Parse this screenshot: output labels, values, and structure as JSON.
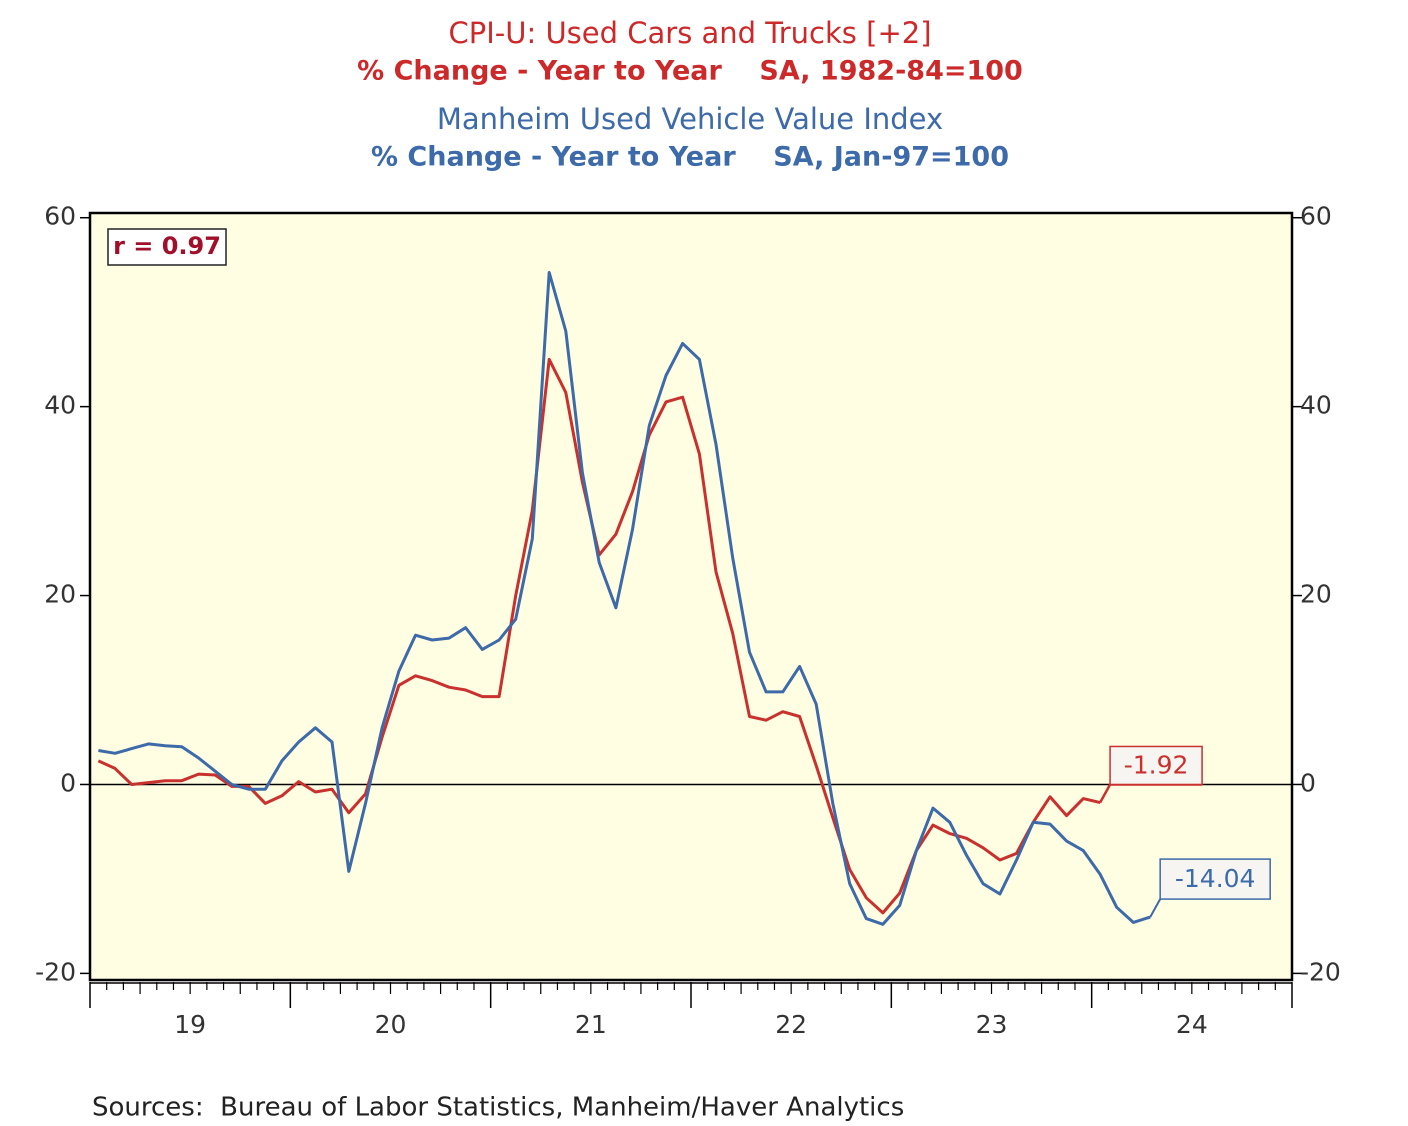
{
  "chart_data": {
    "type": "line",
    "series": [
      {
        "name": "CPI-U: Used Cars and Trucks [+2]",
        "subtitle": "% Change - Year to Year    SA, 1982-84=100",
        "color": "#c8312e",
        "values": [
          2.5,
          1.7,
          0.0,
          0.2,
          0.4,
          0.4,
          1.1,
          1.0,
          -0.2,
          -0.2,
          -2.0,
          -1.2,
          0.3,
          -0.8,
          -0.5,
          -3.0,
          -1.0,
          5.0,
          10.5,
          11.5,
          11.0,
          10.3,
          10.0,
          9.3,
          9.3,
          20.0,
          29.0,
          45.0,
          41.5,
          32.0,
          24.3,
          26.5,
          31.0,
          37.0,
          40.5,
          41.0,
          35.0,
          22.5,
          16.0,
          7.2,
          6.8,
          7.7,
          7.2,
          2.0,
          -3.5,
          -9.0,
          -12.0,
          -13.6,
          -11.5,
          -7.0,
          -4.3,
          -5.2,
          -5.7,
          -6.7,
          -8.0,
          -7.3,
          -4.0,
          -1.3,
          -3.3,
          -1.5,
          -1.92,
          null,
          null,
          null
        ]
      },
      {
        "name": "Manheim Used Vehicle Value Index",
        "subtitle": "% Change - Year to Year    SA, Jan-97=100",
        "color": "#3d6aa8",
        "values": [
          3.6,
          3.3,
          3.8,
          4.3,
          4.1,
          4.0,
          2.8,
          1.4,
          0.0,
          -0.5,
          -0.5,
          2.5,
          4.5,
          6.0,
          4.5,
          -9.2,
          -2.0,
          6.0,
          12.0,
          15.8,
          15.3,
          15.5,
          16.6,
          14.3,
          15.3,
          17.5,
          26.0,
          54.2,
          48.0,
          33.0,
          23.5,
          18.7,
          27.0,
          38.0,
          43.3,
          46.7,
          45.0,
          36.0,
          24.0,
          14.0,
          9.8,
          9.8,
          12.5,
          8.5,
          -2.0,
          -10.5,
          -14.2,
          -14.8,
          -12.8,
          -7.0,
          -2.5,
          -4.0,
          -7.5,
          -10.5,
          -11.6,
          -8.0,
          -4.0,
          -4.2,
          -6.0,
          -7.0,
          -9.5,
          -13.0,
          -14.6,
          -14.04
        ]
      }
    ],
    "x": [
      2019.042,
      2019.125,
      2019.208,
      2019.292,
      2019.375,
      2019.458,
      2019.542,
      2019.625,
      2019.708,
      2019.792,
      2019.875,
      2019.958,
      2020.042,
      2020.125,
      2020.208,
      2020.292,
      2020.375,
      2020.458,
      2020.542,
      2020.625,
      2020.708,
      2020.792,
      2020.875,
      2020.958,
      2021.042,
      2021.125,
      2021.208,
      2021.292,
      2021.375,
      2021.458,
      2021.542,
      2021.625,
      2021.708,
      2021.792,
      2021.875,
      2021.958,
      2022.042,
      2022.125,
      2022.208,
      2022.292,
      2022.375,
      2022.458,
      2022.542,
      2022.625,
      2022.708,
      2022.792,
      2022.875,
      2022.958,
      2023.042,
      2023.125,
      2023.208,
      2023.292,
      2023.375,
      2023.458,
      2023.542,
      2023.625,
      2023.708,
      2023.792,
      2023.875,
      2023.958,
      2024.042,
      2024.125,
      2024.208,
      2024.292
    ],
    "xlim": [
      2019,
      2025
    ],
    "xticks": [
      {
        "value": 2019.5,
        "label": "19"
      },
      {
        "value": 2020.5,
        "label": "20"
      },
      {
        "value": 2021.5,
        "label": "21"
      },
      {
        "value": 2022.5,
        "label": "22"
      },
      {
        "value": 2023.5,
        "label": "23"
      },
      {
        "value": 2024.5,
        "label": "24"
      }
    ],
    "ylim": [
      -20.7,
      60.5
    ],
    "yticks": [
      60,
      40,
      20,
      0,
      -20
    ],
    "y2lim": [
      -20.7,
      60.5
    ],
    "y2ticks": [
      60,
      40,
      20,
      0,
      -20
    ],
    "annotation": "r = 0.97",
    "source": "Sources:  Bureau of Labor Statistics, Manheim/Haver Analytics"
  }
}
